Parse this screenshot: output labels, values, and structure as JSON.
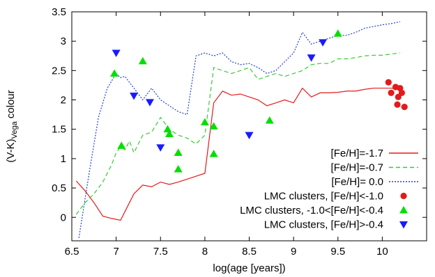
{
  "chart_data": {
    "type": "line",
    "xlabel": "log(age [years])",
    "ylabel_main": "(V-K)",
    "ylabel_sub": "Vega",
    "ylabel_tail": " colour",
    "xlim": [
      6.5,
      10.5
    ],
    "ylim": [
      -0.4,
      3.5
    ],
    "xticks": [
      {
        "value": 6.5,
        "label": "6.5"
      },
      {
        "value": 7,
        "label": "7"
      },
      {
        "value": 7.5,
        "label": "7.5"
      },
      {
        "value": 8,
        "label": "8"
      },
      {
        "value": 8.5,
        "label": "8.5"
      },
      {
        "value": 9,
        "label": "9"
      },
      {
        "value": 9.5,
        "label": "9.5"
      },
      {
        "value": 10,
        "label": "10"
      }
    ],
    "yticks": [
      {
        "value": 0,
        "label": "0"
      },
      {
        "value": 0.5,
        "label": "0.5"
      },
      {
        "value": 1,
        "label": "1"
      },
      {
        "value": 1.5,
        "label": "1.5"
      },
      {
        "value": 2,
        "label": "2"
      },
      {
        "value": 2.5,
        "label": "2.5"
      },
      {
        "value": 3,
        "label": "3"
      },
      {
        "value": 3.5,
        "label": "3.5"
      }
    ],
    "grid": false,
    "legend_position": "bottom-right",
    "series": [
      {
        "name": "[Fe/H]=-1.7",
        "kind": "line",
        "color": "#e31a1c",
        "dash": "",
        "x": [
          6.55,
          6.65,
          6.75,
          6.85,
          6.95,
          7.05,
          7.1,
          7.15,
          7.2,
          7.3,
          7.4,
          7.5,
          7.6,
          7.7,
          7.8,
          7.9,
          8.0,
          8.1,
          8.2,
          8.3,
          8.4,
          8.5,
          8.6,
          8.7,
          8.8,
          8.9,
          9.0,
          9.1,
          9.2,
          9.3,
          9.4,
          9.5,
          9.6,
          9.7,
          9.8,
          9.9,
          10.0,
          10.1,
          10.2
        ],
        "y": [
          0.62,
          0.45,
          0.25,
          0.02,
          -0.02,
          -0.05,
          0.1,
          0.25,
          0.4,
          0.55,
          0.52,
          0.6,
          0.56,
          0.6,
          0.65,
          0.7,
          0.75,
          1.95,
          2.15,
          2.08,
          2.1,
          2.05,
          2.0,
          1.9,
          1.95,
          2.0,
          1.95,
          2.2,
          2.05,
          2.12,
          2.12,
          2.13,
          2.15,
          2.15,
          2.18,
          2.2,
          2.2,
          2.2,
          2.18
        ]
      },
      {
        "name": "[Fe/H]=-0.7",
        "kind": "line",
        "color": "#33cc33",
        "dash": "6,4",
        "x": [
          6.55,
          6.65,
          6.75,
          6.85,
          6.95,
          7.0,
          7.05,
          7.1,
          7.15,
          7.2,
          7.3,
          7.4,
          7.5,
          7.6,
          7.7,
          7.8,
          7.9,
          8.0,
          8.1,
          8.2,
          8.3,
          8.4,
          8.5,
          8.6,
          8.7,
          8.8,
          8.9,
          9.0,
          9.1,
          9.2,
          9.3,
          9.4,
          9.5,
          9.6,
          9.7,
          9.8,
          9.9,
          10.0,
          10.1,
          10.2
        ],
        "y": [
          0.05,
          0.25,
          0.4,
          0.6,
          0.9,
          1.1,
          1.2,
          1.15,
          1.3,
          1.1,
          1.4,
          1.45,
          1.7,
          1.5,
          1.4,
          1.35,
          1.25,
          1.4,
          2.55,
          2.5,
          2.45,
          2.5,
          2.55,
          2.35,
          2.4,
          2.45,
          2.4,
          2.45,
          2.5,
          2.6,
          2.62,
          2.62,
          2.7,
          2.7,
          2.72,
          2.75,
          2.76,
          2.76,
          2.78,
          2.8
        ]
      },
      {
        "name": "[Fe/H]= 0.0",
        "kind": "line",
        "color": "#1f3fd9",
        "dash": "2,2",
        "x": [
          6.58,
          6.7,
          6.8,
          6.9,
          7.0,
          7.05,
          7.1,
          7.2,
          7.3,
          7.4,
          7.5,
          7.6,
          7.7,
          7.8,
          7.9,
          8.0,
          8.1,
          8.2,
          8.3,
          8.4,
          8.5,
          8.6,
          8.7,
          8.8,
          8.9,
          9.0,
          9.1,
          9.2,
          9.3,
          9.4,
          9.5,
          9.6,
          9.7,
          9.8,
          9.9,
          10.0,
          10.1,
          10.2
        ],
        "y": [
          -0.35,
          0.8,
          1.7,
          2.2,
          2.45,
          2.38,
          2.4,
          2.2,
          2.0,
          2.2,
          2.0,
          1.9,
          1.8,
          1.75,
          2.75,
          2.8,
          2.75,
          2.8,
          2.65,
          2.6,
          2.62,
          2.55,
          2.45,
          2.5,
          2.65,
          2.8,
          3.15,
          2.95,
          3.0,
          3.05,
          3.1,
          3.1,
          3.15,
          3.22,
          3.25,
          3.28,
          3.3,
          3.33
        ]
      },
      {
        "name": "LMC clusters, [Fe/H]<-1.0",
        "kind": "circle",
        "color": "#e31a1c",
        "x": [
          10.07,
          10.1,
          10.15,
          10.18,
          10.2,
          10.22,
          10.17,
          10.25
        ],
        "y": [
          2.3,
          2.12,
          2.22,
          2.05,
          2.2,
          2.12,
          1.92,
          1.88
        ]
      },
      {
        "name": "LMC clusters, -1.0<[Fe/H]<-0.4",
        "kind": "triangle-up",
        "color": "#00e000",
        "x": [
          6.98,
          7.06,
          7.3,
          7.58,
          7.6,
          7.7,
          7.7,
          8.0,
          8.1,
          8.1,
          8.73,
          9.5
        ],
        "y": [
          2.45,
          1.22,
          2.66,
          1.5,
          1.42,
          1.1,
          0.82,
          1.62,
          1.55,
          1.08,
          1.65,
          3.13
        ]
      },
      {
        "name": "LMC clusters, [Fe/H]>-0.4",
        "kind": "triangle-down",
        "color": "#1a1aff",
        "x": [
          7.0,
          7.2,
          7.38,
          7.5,
          8.5,
          9.2,
          9.33
        ],
        "y": [
          2.8,
          2.07,
          1.96,
          1.19,
          1.4,
          2.72,
          2.98
        ]
      }
    ]
  }
}
